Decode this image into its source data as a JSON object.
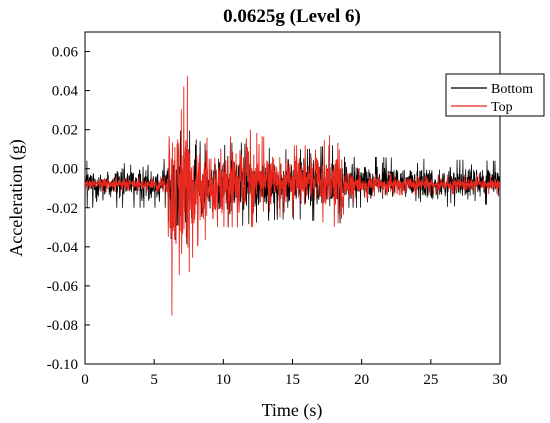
{
  "chart_data": {
    "type": "line",
    "title": "0.0625g (Level 6)",
    "xlabel": "Time (s)",
    "ylabel": "Acceleration (g)",
    "xlim": [
      0,
      30
    ],
    "ylim": [
      -0.1,
      0.07
    ],
    "x_ticks": [
      "0",
      "5",
      "10",
      "15",
      "20",
      "25",
      "30"
    ],
    "y_ticks": [
      "-0.10",
      "-0.08",
      "-0.06",
      "-0.04",
      "-0.02",
      "0.00",
      "0.02",
      "0.04",
      "0.06"
    ],
    "grid": false,
    "legend_position": "top-right",
    "series": [
      {
        "name": "Bottom",
        "color": "#000000",
        "envelope": {
          "t": [
            0,
            5.9,
            6.0,
            6.5,
            7.0,
            7.5,
            8.0,
            9.0,
            10.0,
            11.0,
            12.0,
            14.0,
            16.0,
            17.5,
            18.5,
            19.0,
            21.0,
            25.0,
            30.0
          ],
          "max": [
            0.004,
            0.005,
            0.008,
            0.025,
            0.018,
            0.02,
            0.015,
            0.012,
            0.012,
            0.014,
            0.012,
            0.01,
            0.01,
            0.012,
            0.012,
            0.006,
            0.006,
            0.005,
            0.004
          ],
          "min": [
            -0.02,
            -0.02,
            -0.025,
            -0.05,
            -0.035,
            -0.04,
            -0.035,
            -0.03,
            -0.03,
            -0.03,
            -0.028,
            -0.026,
            -0.026,
            -0.028,
            -0.028,
            -0.02,
            -0.02,
            -0.02,
            -0.018
          ]
        }
      },
      {
        "name": "Top",
        "color": "#e8281e",
        "envelope": {
          "t": [
            0,
            5.9,
            6.0,
            6.2,
            6.6,
            7.0,
            7.3,
            7.6,
            8.0,
            9.0,
            10.0,
            11.0,
            12.0,
            14.0,
            16.0,
            17.5,
            18.1,
            18.6,
            19.0,
            21.0,
            25.0,
            30.0
          ],
          "max": [
            -0.004,
            -0.004,
            0.01,
            0.058,
            0.035,
            0.03,
            0.056,
            0.03,
            0.02,
            0.015,
            0.015,
            0.018,
            0.02,
            0.012,
            0.012,
            0.015,
            0.022,
            0.01,
            0.002,
            -0.002,
            -0.003,
            -0.003
          ],
          "min": [
            -0.012,
            -0.012,
            -0.03,
            -0.079,
            -0.06,
            -0.05,
            -0.065,
            -0.05,
            -0.04,
            -0.035,
            -0.03,
            -0.03,
            -0.03,
            -0.025,
            -0.025,
            -0.028,
            -0.03,
            -0.025,
            -0.018,
            -0.014,
            -0.013,
            -0.013
          ]
        }
      }
    ]
  }
}
